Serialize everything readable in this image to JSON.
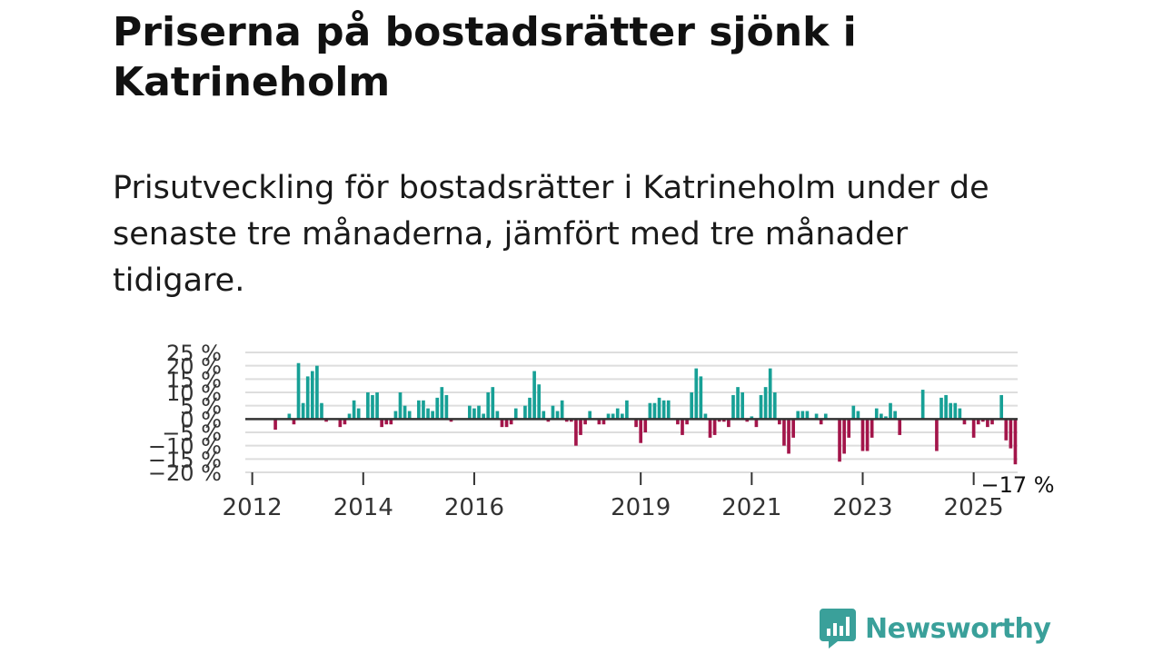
{
  "title": "Priserna på bostadsrätter sjönk i Katrineholm",
  "subtitle": "Prisutveckling för bostadsrätter i Katrineholm under de senaste tre månaderna, jämfört med tre månader tidigare.",
  "brand": {
    "name": "Newsworthy",
    "color": "#3aa09a"
  },
  "chart_data": {
    "type": "bar",
    "title": "Priserna på bostadsrätter sjönk i Katrineholm",
    "xlabel": "",
    "ylabel": "",
    "ylim": [
      -20,
      25
    ],
    "y_ticks": [
      25,
      20,
      15,
      10,
      5,
      0,
      -5,
      -10,
      -15,
      -20
    ],
    "y_tick_labels": [
      "25 %",
      "20 %",
      "15 %",
      "10 %",
      "5 %",
      "0 %",
      "−5 %",
      "−10 %",
      "−15 %",
      "−20 %"
    ],
    "x_ticks": [
      {
        "year": 2012,
        "label": "2012"
      },
      {
        "year": 2014,
        "label": "2014"
      },
      {
        "year": 2016,
        "label": "2016"
      },
      {
        "year": 2019,
        "label": "2019"
      },
      {
        "year": 2021,
        "label": "2021"
      },
      {
        "year": 2023,
        "label": "2023"
      },
      {
        "year": 2025,
        "label": "2025"
      }
    ],
    "start": "2011-12",
    "frequency": "monthly",
    "last_value_label": "−17 %",
    "colors": {
      "positive": "#17a096",
      "negative": "#a3154a",
      "zero_line": "#333333",
      "grid": "#dddddd"
    },
    "values": [
      0,
      0,
      0,
      0,
      0,
      0,
      -4,
      0,
      0,
      2,
      -2,
      21,
      6,
      16,
      18,
      20,
      6,
      -1,
      0,
      0,
      -3,
      -2,
      2,
      7,
      4,
      0,
      10,
      9,
      10,
      -3,
      -2,
      -2,
      3,
      10,
      5,
      3,
      0,
      7,
      7,
      4,
      3,
      8,
      12,
      9,
      -1,
      0,
      0,
      0,
      5,
      4,
      5,
      2,
      10,
      12,
      3,
      -3,
      -3,
      -2,
      4,
      0,
      5,
      8,
      18,
      13,
      3,
      -1,
      5,
      3,
      7,
      -1,
      -1,
      -10,
      -6,
      -2,
      3,
      0,
      -2,
      -2,
      2,
      2,
      4,
      2,
      7,
      0,
      -3,
      -9,
      -5,
      6,
      6,
      8,
      7,
      7,
      0,
      -2,
      -6,
      -2,
      10,
      19,
      16,
      2,
      -7,
      -6,
      -1,
      -1,
      -3,
      9,
      12,
      10,
      -1,
      1,
      -3,
      9,
      12,
      19,
      10,
      -2,
      -10,
      -13,
      -7,
      3,
      3,
      3,
      0,
      2,
      -2,
      2,
      0,
      0,
      -16,
      -13,
      -7,
      5,
      3,
      -12,
      -12,
      -7,
      4,
      2,
      1,
      6,
      3,
      -6,
      0,
      0,
      0,
      0,
      11,
      0,
      0,
      -12,
      8,
      9,
      6,
      6,
      4,
      -2,
      0,
      -7,
      -2,
      -1,
      -3,
      -2,
      0,
      9,
      -8,
      -11,
      -17
    ]
  }
}
